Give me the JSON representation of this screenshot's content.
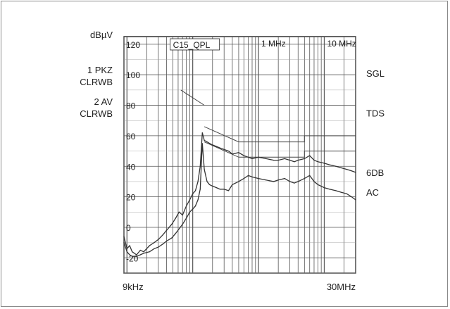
{
  "chart_data": {
    "type": "line",
    "title": "",
    "xlabel": "",
    "ylabel": "",
    "y_unit_label": "dBµV",
    "x_scale": "log",
    "xlim_hz": [
      9000,
      30000000
    ],
    "ylim": [
      -30,
      125
    ],
    "x_end_labels": [
      "9kHz",
      "30MHz"
    ],
    "x_decade_labels": [
      {
        "label": "1 MHz",
        "hz": 1000000
      },
      {
        "label": "10 MHz",
        "hz": 10000000
      }
    ],
    "y_ticks": [
      {
        "value": 120,
        "label": "120"
      },
      {
        "value": 100,
        "label": "100"
      },
      {
        "value": 80,
        "label": "80"
      },
      {
        "value": 60,
        "label": "60"
      },
      {
        "value": 40,
        "label": "40"
      },
      {
        "value": 20,
        "label": "20"
      },
      {
        "value": 0,
        "label": "0"
      },
      {
        "value": -20,
        "label": "-20"
      }
    ],
    "grid": true,
    "left_labels": [
      "1 PKZ",
      "CLRWB",
      "2 AV",
      "CLRWB"
    ],
    "right_labels": [
      {
        "text": "SGL",
        "y": 101
      },
      {
        "text": "TDS",
        "y": 75
      },
      {
        "text": "6DB",
        "y": 36
      },
      {
        "text": "AC",
        "y": 23
      }
    ],
    "annotations": [
      {
        "text": "C15_QPL",
        "x_hz": 100000,
        "y": 110
      }
    ],
    "series": [
      {
        "color": "#333333",
        "points": [
          [
            9000,
            -6
          ],
          [
            10000,
            -14
          ],
          [
            11000,
            -12
          ],
          [
            12000,
            -16
          ],
          [
            14000,
            -18
          ],
          [
            16000,
            -15
          ],
          [
            18000,
            -16
          ],
          [
            22000,
            -12
          ],
          [
            26000,
            -10
          ],
          [
            30000,
            -8
          ],
          [
            35000,
            -5
          ],
          [
            40000,
            -2
          ],
          [
            48000,
            2
          ],
          [
            55000,
            6
          ],
          [
            62000,
            10
          ],
          [
            70000,
            8
          ],
          [
            80000,
            14
          ],
          [
            90000,
            18
          ],
          [
            100000,
            22
          ],
          [
            110000,
            24
          ],
          [
            120000,
            30
          ],
          [
            130000,
            40
          ],
          [
            140000,
            62
          ],
          [
            150000,
            57
          ],
          [
            165000,
            56
          ],
          [
            180000,
            55
          ],
          [
            200000,
            54
          ],
          [
            230000,
            53
          ],
          [
            260000,
            52
          ],
          [
            300000,
            51
          ],
          [
            350000,
            50
          ],
          [
            400000,
            48
          ],
          [
            500000,
            49
          ],
          [
            600000,
            47
          ],
          [
            700000,
            46
          ],
          [
            800000,
            45
          ],
          [
            1000000,
            46
          ],
          [
            1300000,
            45
          ],
          [
            1700000,
            44
          ],
          [
            2000000,
            44
          ],
          [
            2500000,
            45
          ],
          [
            3000000,
            44
          ],
          [
            3500000,
            43
          ],
          [
            4000000,
            44
          ],
          [
            5000000,
            45
          ],
          [
            6000000,
            47
          ],
          [
            7000000,
            44
          ],
          [
            8000000,
            43
          ],
          [
            10000000,
            42
          ],
          [
            12000000,
            41
          ],
          [
            15000000,
            40
          ],
          [
            18000000,
            39
          ],
          [
            22000000,
            38
          ],
          [
            26000000,
            37
          ],
          [
            30000000,
            36
          ]
        ]
      },
      {
        "color": "#333333",
        "points": [
          [
            9000,
            -10
          ],
          [
            10000,
            -16
          ],
          [
            11000,
            -18
          ],
          [
            12000,
            -19
          ],
          [
            14000,
            -19
          ],
          [
            16000,
            -18
          ],
          [
            18000,
            -17
          ],
          [
            22000,
            -16
          ],
          [
            26000,
            -14
          ],
          [
            30000,
            -13
          ],
          [
            35000,
            -11
          ],
          [
            40000,
            -9
          ],
          [
            48000,
            -7
          ],
          [
            55000,
            -4
          ],
          [
            62000,
            -1
          ],
          [
            70000,
            2
          ],
          [
            80000,
            6
          ],
          [
            90000,
            10
          ],
          [
            100000,
            12
          ],
          [
            110000,
            14
          ],
          [
            120000,
            18
          ],
          [
            130000,
            25
          ],
          [
            140000,
            55
          ],
          [
            150000,
            38
          ],
          [
            165000,
            30
          ],
          [
            180000,
            28
          ],
          [
            200000,
            27
          ],
          [
            230000,
            26
          ],
          [
            260000,
            25
          ],
          [
            300000,
            25
          ],
          [
            350000,
            24
          ],
          [
            400000,
            28
          ],
          [
            500000,
            30
          ],
          [
            600000,
            32
          ],
          [
            700000,
            34
          ],
          [
            800000,
            33
          ],
          [
            1000000,
            32
          ],
          [
            1300000,
            31
          ],
          [
            1700000,
            30
          ],
          [
            2000000,
            31
          ],
          [
            2500000,
            32
          ],
          [
            3000000,
            30
          ],
          [
            3500000,
            29
          ],
          [
            4000000,
            30
          ],
          [
            5000000,
            32
          ],
          [
            6000000,
            34
          ],
          [
            7000000,
            30
          ],
          [
            8000000,
            28
          ],
          [
            10000000,
            26
          ],
          [
            12000000,
            25
          ],
          [
            15000000,
            24
          ],
          [
            18000000,
            23
          ],
          [
            22000000,
            22
          ],
          [
            26000000,
            20
          ],
          [
            30000000,
            18
          ]
        ]
      }
    ],
    "limit_lines": [
      [
        [
          66000,
          90
        ],
        [
          150000,
          80
        ]
      ],
      [
        [
          150000,
          66
        ],
        [
          500000,
          56
        ],
        [
          5000000,
          56
        ],
        [
          5000000,
          60
        ],
        [
          30000000,
          60
        ]
      ],
      [
        [
          150000,
          56
        ],
        [
          500000,
          46
        ],
        [
          5000000,
          46
        ],
        [
          5000000,
          50
        ],
        [
          30000000,
          50
        ]
      ]
    ]
  }
}
